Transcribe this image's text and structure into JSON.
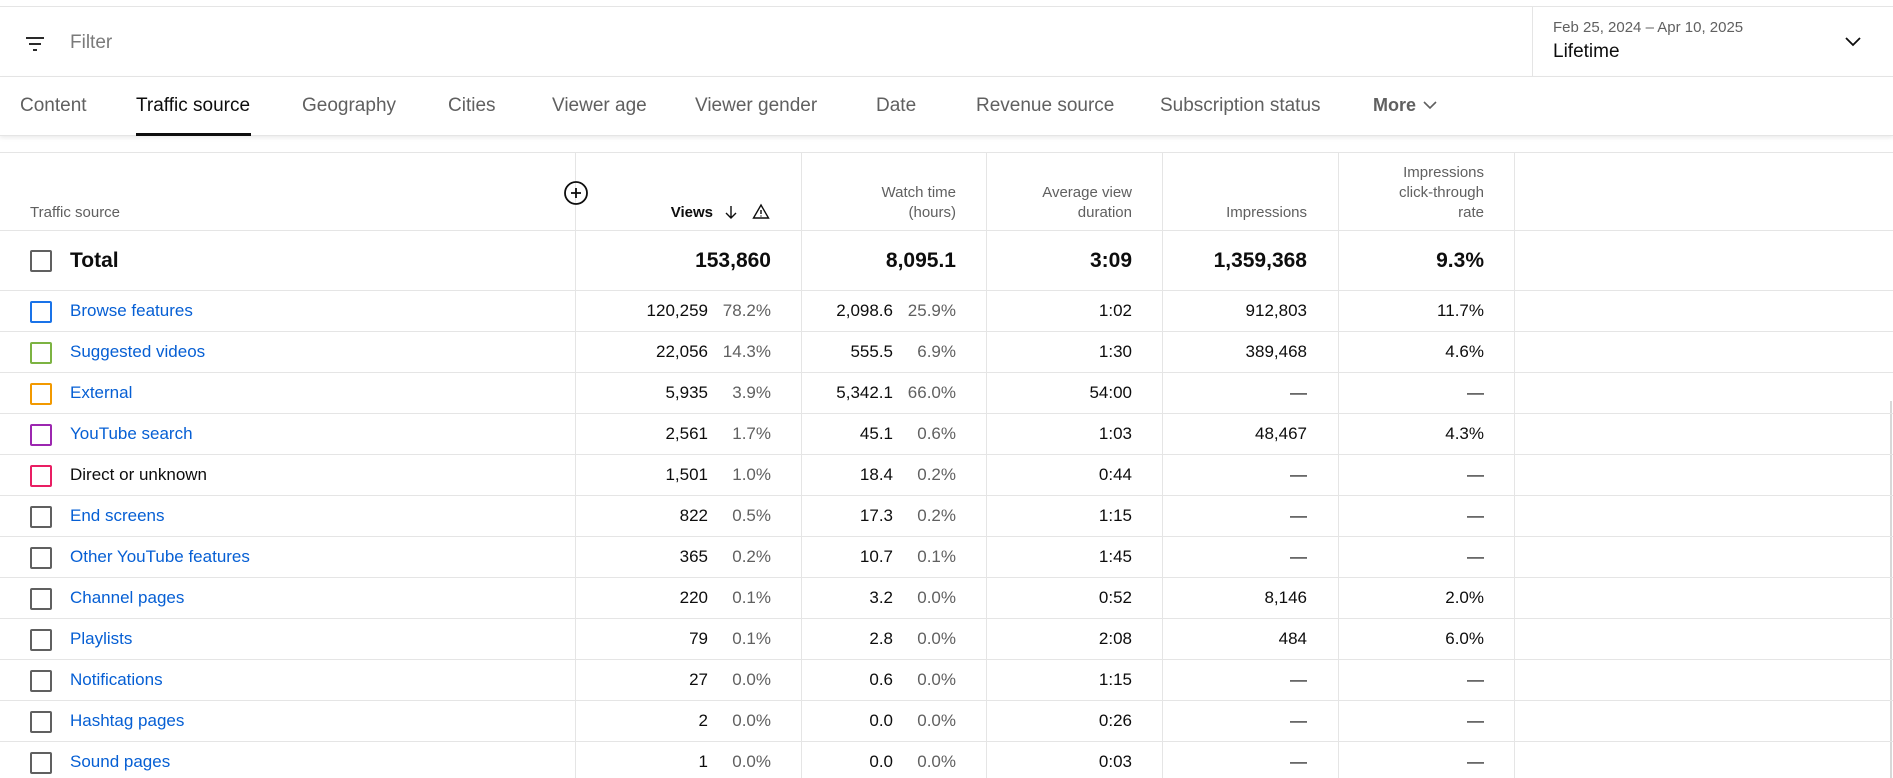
{
  "filter": {
    "placeholder": "Filter"
  },
  "date_range": {
    "range": "Feb 25, 2024 – Apr 10, 2025",
    "preset": "Lifetime"
  },
  "tabs": [
    {
      "label": "Content"
    },
    {
      "label": "Traffic source"
    },
    {
      "label": "Geography"
    },
    {
      "label": "Cities"
    },
    {
      "label": "Viewer age"
    },
    {
      "label": "Viewer gender"
    },
    {
      "label": "Date"
    },
    {
      "label": "Revenue source"
    },
    {
      "label": "Subscription status"
    },
    {
      "label": "More"
    }
  ],
  "active_tab": "Traffic source",
  "columns": {
    "source": "Traffic source",
    "views": "Views",
    "watch_time_1": "Watch time",
    "watch_time_2": "(hours)",
    "avd_1": "Average view",
    "avd_2": "duration",
    "impressions": "Impressions",
    "ctr_1": "Impressions",
    "ctr_2": "click-through",
    "ctr_3": "rate"
  },
  "total": {
    "label": "Total",
    "views": "153,860",
    "watch_time": "8,095.1",
    "avd": "3:09",
    "impressions": "1,359,368",
    "ctr": "9.3%"
  },
  "rows": [
    {
      "label": "Browse features",
      "color": "#1a73e8",
      "link": true,
      "views": "120,259",
      "views_pct": "78.2%",
      "watch": "2,098.6",
      "watch_pct": "25.9%",
      "avd": "1:02",
      "impressions": "912,803",
      "ctr": "11.7%"
    },
    {
      "label": "Suggested videos",
      "color": "#7cb342",
      "link": true,
      "views": "22,056",
      "views_pct": "14.3%",
      "watch": "555.5",
      "watch_pct": "6.9%",
      "avd": "1:30",
      "impressions": "389,468",
      "ctr": "4.6%"
    },
    {
      "label": "External",
      "color": "#f29900",
      "link": true,
      "views": "5,935",
      "views_pct": "3.9%",
      "watch": "5,342.1",
      "watch_pct": "66.0%",
      "avd": "54:00",
      "impressions": "—",
      "ctr": "—"
    },
    {
      "label": "YouTube search",
      "color": "#9c27b0",
      "link": true,
      "views": "2,561",
      "views_pct": "1.7%",
      "watch": "45.1",
      "watch_pct": "0.6%",
      "avd": "1:03",
      "impressions": "48,467",
      "ctr": "4.3%"
    },
    {
      "label": "Direct or unknown",
      "color": "#e91e63",
      "link": false,
      "views": "1,501",
      "views_pct": "1.0%",
      "watch": "18.4",
      "watch_pct": "0.2%",
      "avd": "0:44",
      "impressions": "—",
      "ctr": "—"
    },
    {
      "label": "End screens",
      "color": "#606060",
      "link": true,
      "views": "822",
      "views_pct": "0.5%",
      "watch": "17.3",
      "watch_pct": "0.2%",
      "avd": "1:15",
      "impressions": "—",
      "ctr": "—"
    },
    {
      "label": "Other YouTube features",
      "color": "#606060",
      "link": true,
      "views": "365",
      "views_pct": "0.2%",
      "watch": "10.7",
      "watch_pct": "0.1%",
      "avd": "1:45",
      "impressions": "—",
      "ctr": "—"
    },
    {
      "label": "Channel pages",
      "color": "#606060",
      "link": true,
      "views": "220",
      "views_pct": "0.1%",
      "watch": "3.2",
      "watch_pct": "0.0%",
      "avd": "0:52",
      "impressions": "8,146",
      "ctr": "2.0%"
    },
    {
      "label": "Playlists",
      "color": "#606060",
      "link": true,
      "views": "79",
      "views_pct": "0.1%",
      "watch": "2.8",
      "watch_pct": "0.0%",
      "avd": "2:08",
      "impressions": "484",
      "ctr": "6.0%"
    },
    {
      "label": "Notifications",
      "color": "#606060",
      "link": true,
      "views": "27",
      "views_pct": "0.0%",
      "watch": "0.6",
      "watch_pct": "0.0%",
      "avd": "1:15",
      "impressions": "—",
      "ctr": "—"
    },
    {
      "label": "Hashtag pages",
      "color": "#606060",
      "link": true,
      "views": "2",
      "views_pct": "0.0%",
      "watch": "0.0",
      "watch_pct": "0.0%",
      "avd": "0:26",
      "impressions": "—",
      "ctr": "—"
    },
    {
      "label": "Sound pages",
      "color": "#606060",
      "link": true,
      "views": "1",
      "views_pct": "0.0%",
      "watch": "0.0",
      "watch_pct": "0.0%",
      "avd": "0:03",
      "impressions": "—",
      "ctr": "—"
    }
  ]
}
